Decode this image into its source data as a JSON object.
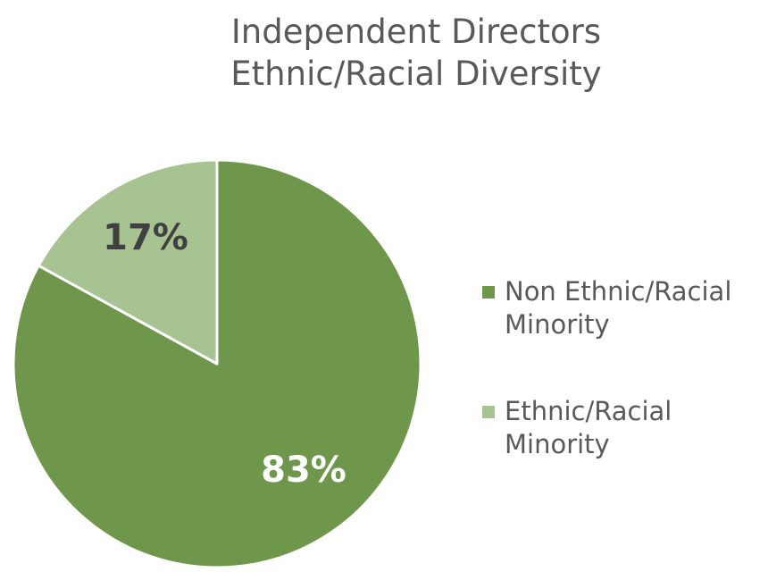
{
  "chart_data": {
    "type": "pie",
    "title": "Independent Directors",
    "subtitle": "Ethnic/Racial Diversity",
    "slices": [
      {
        "label": "Non Ethnic/Racial Minority",
        "value": 83,
        "display": "83%",
        "color": "#6e974b"
      },
      {
        "label": "Ethnic/Racial Minority",
        "value": 17,
        "display": "17%",
        "color": "#a8c392"
      }
    ],
    "legend_position": "right"
  }
}
